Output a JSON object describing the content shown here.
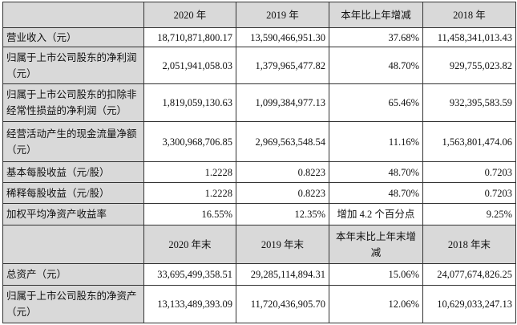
{
  "header1": [
    "",
    "2020 年",
    "2019 年",
    "本年比上年增减",
    "2018 年"
  ],
  "rows1": [
    {
      "label": "营业收入（元）",
      "v": [
        "18,710,871,800.17",
        "13,590,466,951.30",
        "37.68%",
        "11,458,341,013.43"
      ]
    },
    {
      "label": "归属于上市公司股东的净利润（元）",
      "v": [
        "2,051,941,058.03",
        "1,379,965,477.82",
        "48.70%",
        "929,755,023.82"
      ]
    },
    {
      "label": "归属于上市公司股东的扣除非经常性损益的净利润（元）",
      "v": [
        "1,819,059,130.63",
        "1,099,384,977.13",
        "65.46%",
        "932,395,583.59"
      ]
    },
    {
      "label": "经营活动产生的现金流量净额（元）",
      "v": [
        "3,300,968,706.85",
        "2,969,563,548.54",
        "11.16%",
        "1,563,801,474.06"
      ]
    },
    {
      "label": "基本每股收益（元/股）",
      "v": [
        "1.2228",
        "0.8223",
        "48.70%",
        "0.7203"
      ]
    },
    {
      "label": "稀释每股收益（元/股）",
      "v": [
        "1.2228",
        "0.8223",
        "48.70%",
        "0.7203"
      ]
    },
    {
      "label": "加权平均净资产收益率",
      "v": [
        "16.55%",
        "12.35%",
        "增加 4.2 个百分点",
        "9.25%"
      ]
    }
  ],
  "header2": [
    "",
    "2020 年末",
    "2019 年末",
    "本年末比上年末增减",
    "2018 年末"
  ],
  "rows2": [
    {
      "label": "总资产（元）",
      "v": [
        "33,695,499,358.51",
        "29,285,114,894.31",
        "15.06%",
        "24,077,674,826.25"
      ]
    },
    {
      "label": "归属于上市公司股东的净资产（元）",
      "v": [
        "13,133,489,393.09",
        "11,720,436,905.70",
        "12.06%",
        "10,629,033,247.13"
      ]
    }
  ]
}
